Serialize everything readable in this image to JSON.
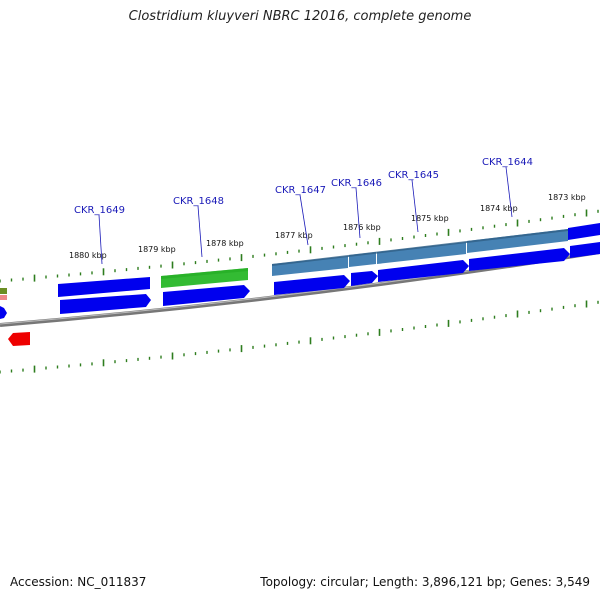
{
  "title": "Clostridium kluyveri NBRC 12016, complete genome",
  "footer": {
    "accession_label": "Accession:",
    "accession": "NC_011837",
    "topology_label": "Topology:",
    "topology": "circular",
    "length_label": "Length:",
    "length": "3,896,121 bp",
    "genes_label": "Genes:",
    "genes": "3,549"
  },
  "colors": {
    "cds_blue": "#0000ee",
    "cds_steelblue": "#4682b4",
    "cds_green": "#33bb33",
    "cds_red": "#ee0000",
    "backbone": "#888888",
    "tick_green": "#2e7d1e"
  },
  "genes": [
    {
      "locus": "CKR_1649"
    },
    {
      "locus": "CKR_1648"
    },
    {
      "locus": "CKR_1647"
    },
    {
      "locus": "CKR_1646"
    },
    {
      "locus": "CKR_1645"
    },
    {
      "locus": "CKR_1644"
    }
  ],
  "scale_ticks": [
    {
      "label": "1880 kbp"
    },
    {
      "label": "1879 kbp"
    },
    {
      "label": "1878 kbp"
    },
    {
      "label": "1877 kbp"
    },
    {
      "label": "1876 kbp"
    },
    {
      "label": "1875 kbp"
    },
    {
      "label": "1874 kbp"
    },
    {
      "label": "1873 kbp"
    }
  ]
}
